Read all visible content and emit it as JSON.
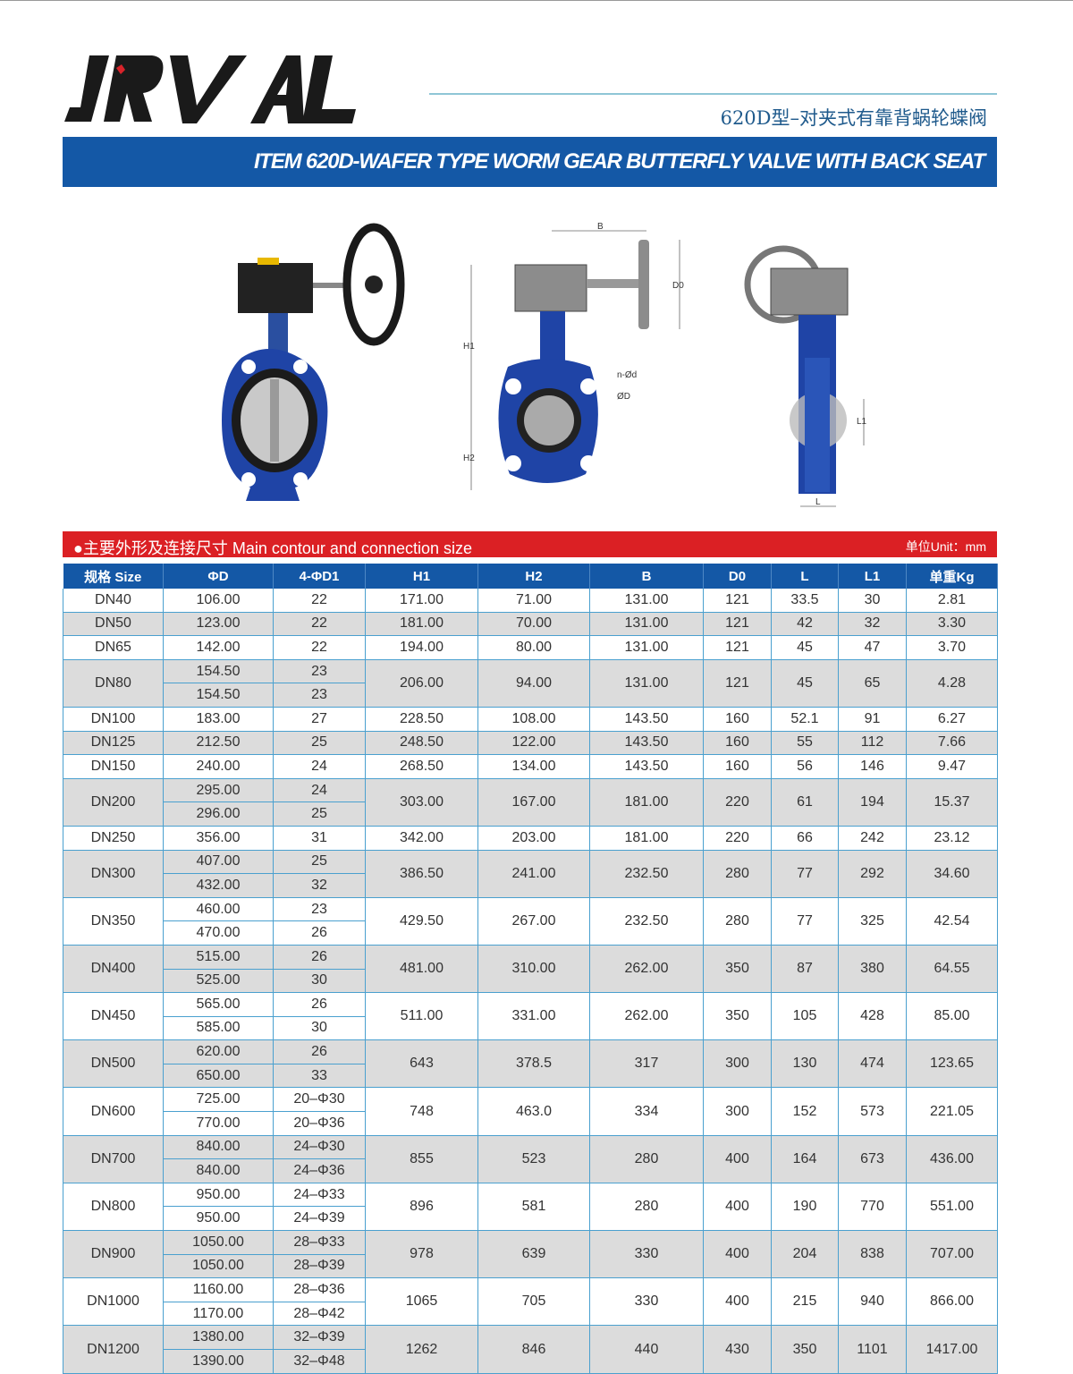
{
  "logo": {
    "text": "JRVAL"
  },
  "header": {
    "cn_title": "620D型–对夹式有靠背蜗轮蝶阀",
    "banner": "ITEM 620D-WAFER TYPE WORM GEAR BUTTERFLY VALVE WITH BACK SEAT"
  },
  "drawing_labels": {
    "B": "B",
    "D0": "D0",
    "H1": "H1",
    "H2": "H2",
    "nd": "n-Ød",
    "D": "ØD",
    "L": "L",
    "L1": "L1"
  },
  "section": {
    "title": "●主要外形及连接尺寸 Main contour and connection size",
    "unit": "单位Unit：mm"
  },
  "table": {
    "headers": [
      "规格 Size",
      "ΦD",
      "4-ΦD1",
      "H1",
      "H2",
      "B",
      "D0",
      "L",
      "L1",
      "单重Kg"
    ],
    "rows": [
      {
        "size": "DN40",
        "d": [
          "106.00"
        ],
        "d1": [
          "22"
        ],
        "h1": "171.00",
        "h2": "71.00",
        "b": "131.00",
        "d0": "121",
        "l": "33.5",
        "l1": "30",
        "kg": "2.81"
      },
      {
        "size": "DN50",
        "d": [
          "123.00"
        ],
        "d1": [
          "22"
        ],
        "h1": "181.00",
        "h2": "70.00",
        "b": "131.00",
        "d0": "121",
        "l": "42",
        "l1": "32",
        "kg": "3.30"
      },
      {
        "size": "DN65",
        "d": [
          "142.00"
        ],
        "d1": [
          "22"
        ],
        "h1": "194.00",
        "h2": "80.00",
        "b": "131.00",
        "d0": "121",
        "l": "45",
        "l1": "47",
        "kg": "3.70"
      },
      {
        "size": "DN80",
        "d": [
          "154.50",
          "154.50"
        ],
        "d1": [
          "23",
          "23"
        ],
        "h1": "206.00",
        "h2": "94.00",
        "b": "131.00",
        "d0": "121",
        "l": "45",
        "l1": "65",
        "kg": "4.28"
      },
      {
        "size": "DN100",
        "d": [
          "183.00"
        ],
        "d1": [
          "27"
        ],
        "h1": "228.50",
        "h2": "108.00",
        "b": "143.50",
        "d0": "160",
        "l": "52.1",
        "l1": "91",
        "kg": "6.27"
      },
      {
        "size": "DN125",
        "d": [
          "212.50"
        ],
        "d1": [
          "25"
        ],
        "h1": "248.50",
        "h2": "122.00",
        "b": "143.50",
        "d0": "160",
        "l": "55",
        "l1": "112",
        "kg": "7.66"
      },
      {
        "size": "DN150",
        "d": [
          "240.00"
        ],
        "d1": [
          "24"
        ],
        "h1": "268.50",
        "h2": "134.00",
        "b": "143.50",
        "d0": "160",
        "l": "56",
        "l1": "146",
        "kg": "9.47"
      },
      {
        "size": "DN200",
        "d": [
          "295.00",
          "296.00"
        ],
        "d1": [
          "24",
          "25"
        ],
        "h1": "303.00",
        "h2": "167.00",
        "b": "181.00",
        "d0": "220",
        "l": "61",
        "l1": "194",
        "kg": "15.37"
      },
      {
        "size": "DN250",
        "d": [
          "356.00"
        ],
        "d1": [
          "31"
        ],
        "h1": "342.00",
        "h2": "203.00",
        "b": "181.00",
        "d0": "220",
        "l": "66",
        "l1": "242",
        "kg": "23.12"
      },
      {
        "size": "DN300",
        "d": [
          "407.00",
          "432.00"
        ],
        "d1": [
          "25",
          "32"
        ],
        "h1": "386.50",
        "h2": "241.00",
        "b": "232.50",
        "d0": "280",
        "l": "77",
        "l1": "292",
        "kg": "34.60"
      },
      {
        "size": "DN350",
        "d": [
          "460.00",
          "470.00"
        ],
        "d1": [
          "23",
          "26"
        ],
        "h1": "429.50",
        "h2": "267.00",
        "b": "232.50",
        "d0": "280",
        "l": "77",
        "l1": "325",
        "kg": "42.54"
      },
      {
        "size": "DN400",
        "d": [
          "515.00",
          "525.00"
        ],
        "d1": [
          "26",
          "30"
        ],
        "h1": "481.00",
        "h2": "310.00",
        "b": "262.00",
        "d0": "350",
        "l": "87",
        "l1": "380",
        "kg": "64.55"
      },
      {
        "size": "DN450",
        "d": [
          "565.00",
          "585.00"
        ],
        "d1": [
          "26",
          "30"
        ],
        "h1": "511.00",
        "h2": "331.00",
        "b": "262.00",
        "d0": "350",
        "l": "105",
        "l1": "428",
        "kg": "85.00"
      },
      {
        "size": "DN500",
        "d": [
          "620.00",
          "650.00"
        ],
        "d1": [
          "26",
          "33"
        ],
        "h1": "643",
        "h2": "378.5",
        "b": "317",
        "d0": "300",
        "l": "130",
        "l1": "474",
        "kg": "123.65"
      },
      {
        "size": "DN600",
        "d": [
          "725.00",
          "770.00"
        ],
        "d1": [
          "20–Φ30",
          "20–Φ36"
        ],
        "h1": "748",
        "h2": "463.0",
        "b": "334",
        "d0": "300",
        "l": "152",
        "l1": "573",
        "kg": "221.05"
      },
      {
        "size": "DN700",
        "d": [
          "840.00",
          "840.00"
        ],
        "d1": [
          "24–Φ30",
          "24–Φ36"
        ],
        "h1": "855",
        "h2": "523",
        "b": "280",
        "d0": "400",
        "l": "164",
        "l1": "673",
        "kg": "436.00"
      },
      {
        "size": "DN800",
        "d": [
          "950.00",
          "950.00"
        ],
        "d1": [
          "24–Φ33",
          "24–Φ39"
        ],
        "h1": "896",
        "h2": "581",
        "b": "280",
        "d0": "400",
        "l": "190",
        "l1": "770",
        "kg": "551.00"
      },
      {
        "size": "DN900",
        "d": [
          "1050.00",
          "1050.00"
        ],
        "d1": [
          "28–Φ33",
          "28–Φ39"
        ],
        "h1": "978",
        "h2": "639",
        "b": "330",
        "d0": "400",
        "l": "204",
        "l1": "838",
        "kg": "707.00"
      },
      {
        "size": "DN1000",
        "d": [
          "1160.00",
          "1170.00"
        ],
        "d1": [
          "28–Φ36",
          "28–Φ42"
        ],
        "h1": "1065",
        "h2": "705",
        "b": "330",
        "d0": "400",
        "l": "215",
        "l1": "940",
        "kg": "866.00"
      },
      {
        "size": "DN1200",
        "d": [
          "1380.00",
          "1390.00"
        ],
        "d1": [
          "32–Φ39",
          "32–Φ48"
        ],
        "h1": "1262",
        "h2": "846",
        "b": "440",
        "d0": "430",
        "l": "350",
        "l1": "1101",
        "kg": "1417.00"
      }
    ]
  },
  "colors": {
    "banner": "#1458a6",
    "section_bar": "#db2024",
    "row_alt": "#dcdcdc",
    "grid": "#4aa0cf"
  }
}
